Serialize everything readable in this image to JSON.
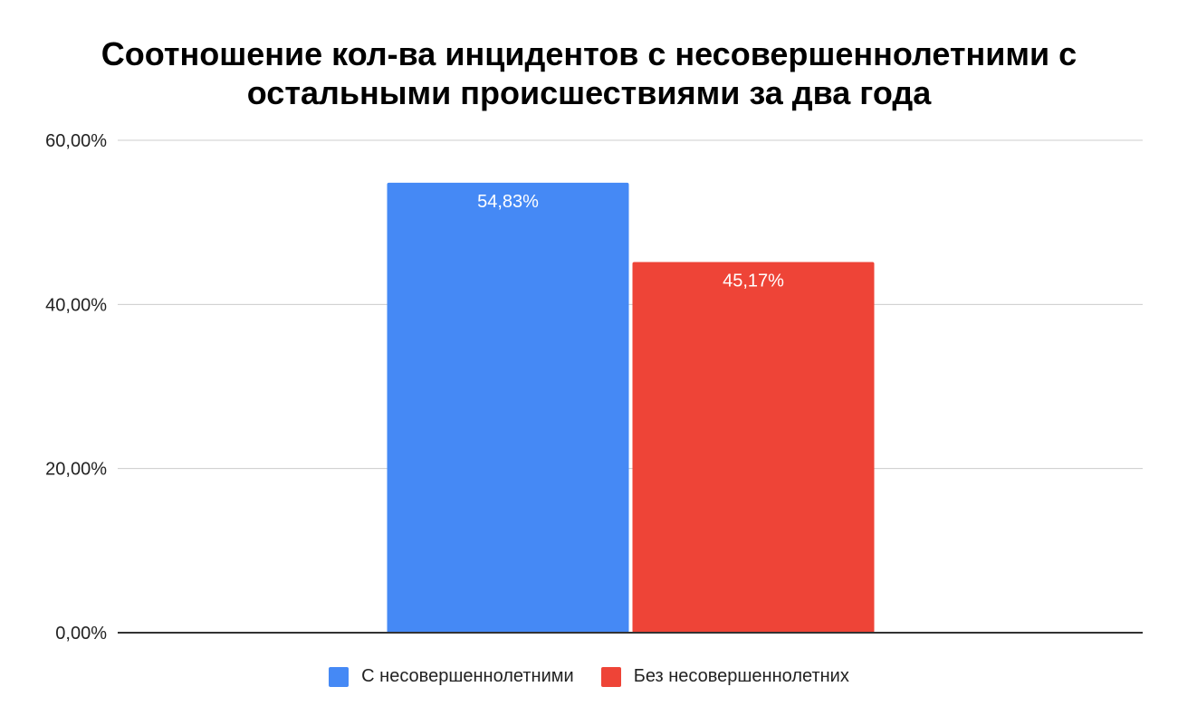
{
  "chart_data": {
    "type": "bar",
    "title": "Соотношение кол-ва инцидентов с несовершеннолетними с остальными происшествиями за два года",
    "title_lines": [
      "Соотношение кол-ва инцидентов с несовершеннолетними с",
      "остальными происшествиями за два года"
    ],
    "ylim": [
      0,
      60
    ],
    "y_ticks": [
      0,
      20,
      40,
      60
    ],
    "y_tick_labels": [
      "0,00%",
      "20,00%",
      "40,00%",
      "60,00%"
    ],
    "grid": true,
    "legend_position": "bottom",
    "series": [
      {
        "name": "С несовершеннолетними",
        "value": 54.83,
        "label": "54,83%",
        "color": "#4589f5"
      },
      {
        "name": "Без несовершеннолетних",
        "value": 45.17,
        "label": "45,17%",
        "color": "#ee4437"
      }
    ]
  }
}
